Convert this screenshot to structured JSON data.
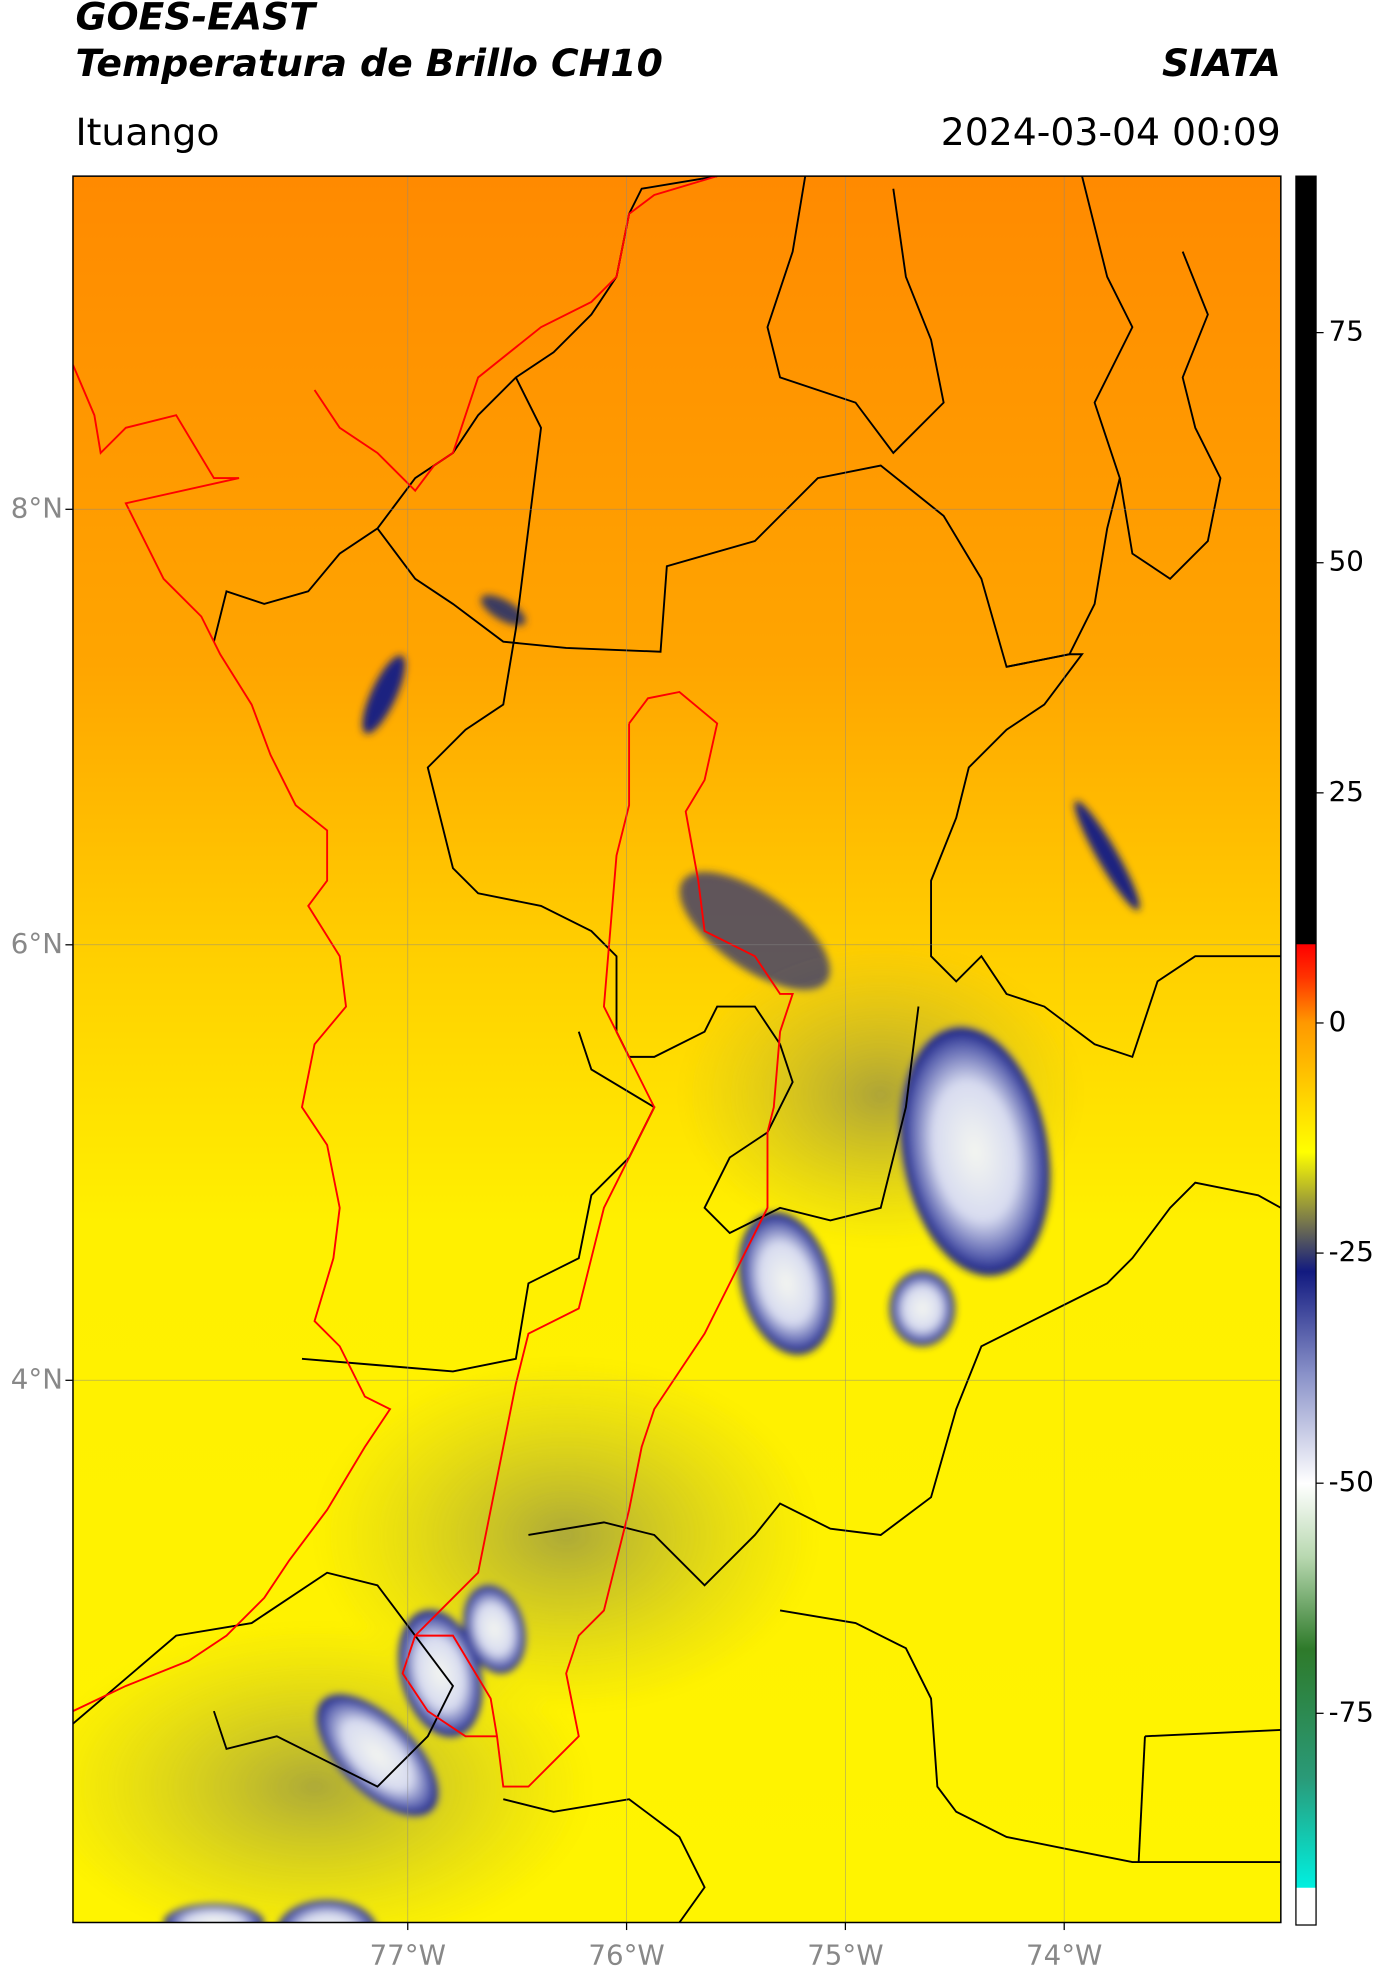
{
  "header": {
    "title": "GOES-EAST",
    "subtitle": "Temperatura de Brillo CH10",
    "source": "SIATA",
    "place": "Ituango",
    "datetime": "2024-03-04 00:09"
  },
  "map": {
    "xlim": [
      -78.53,
      -73.01
    ],
    "ylim": [
      1.51,
      9.53
    ],
    "xticks": [
      {
        "value": -77,
        "label": "77°W"
      },
      {
        "value": -76,
        "label": "76°W"
      },
      {
        "value": -75,
        "label": "75°W"
      },
      {
        "value": -74,
        "label": "74°W"
      }
    ],
    "yticks": [
      {
        "value": 8,
        "label": "8°N"
      },
      {
        "value": 6,
        "label": "6°N"
      },
      {
        "value": 4,
        "label": "4°N"
      }
    ],
    "grid": true
  },
  "colorbar": {
    "lim": [
      -98,
      92
    ],
    "ticks": [
      75,
      50,
      25,
      0,
      -25,
      -50,
      -75
    ],
    "stops": [
      {
        "value": -98,
        "color": "#ffffff"
      },
      {
        "value": -94,
        "color": "#ffffff"
      },
      {
        "value": -93.9,
        "color": "#00f0e0"
      },
      {
        "value": -82,
        "color": "#2a9a78"
      },
      {
        "value": -68,
        "color": "#2e7a2a"
      },
      {
        "value": -58,
        "color": "#b8d8b0"
      },
      {
        "value": -50,
        "color": "#ffffff"
      },
      {
        "value": -38,
        "color": "#8890c8"
      },
      {
        "value": -27,
        "color": "#121a80"
      },
      {
        "value": -22,
        "color": "#707050"
      },
      {
        "value": -14,
        "color": "#ffff00"
      },
      {
        "value": 0,
        "color": "#ff9900"
      },
      {
        "value": 5,
        "color": "#ff3300"
      },
      {
        "value": 8.5,
        "color": "#ff0000"
      },
      {
        "value": 8.6,
        "color": "#000000"
      },
      {
        "value": 92,
        "color": "#000000"
      }
    ]
  }
}
